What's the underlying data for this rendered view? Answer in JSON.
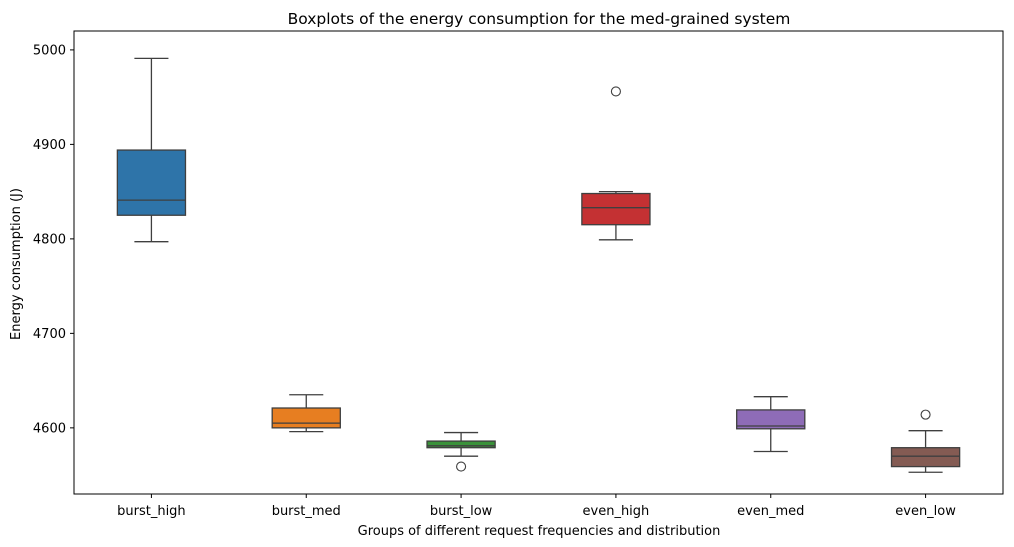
{
  "chart_data": {
    "type": "box",
    "title": "Boxplots of the energy consumption for the med-grained system",
    "xlabel": "Groups of different request frequencies and distribution",
    "ylabel": "Energy consumption (J)",
    "ylim": [
      4530,
      5020
    ],
    "yticks": [
      4600,
      4700,
      4800,
      4900,
      5000
    ],
    "grid": false,
    "categories": [
      "burst_high",
      "burst_med",
      "burst_low",
      "even_high",
      "even_med",
      "even_low"
    ],
    "series": [
      {
        "category": "burst_high",
        "whisker_low": 4797,
        "q1": 4825,
        "median": 4841,
        "q3": 4894,
        "whisker_high": 4991,
        "outliers": [],
        "color": "#2e74a9"
      },
      {
        "category": "burst_med",
        "whisker_low": 4596,
        "q1": 4600,
        "median": 4605,
        "q3": 4621,
        "whisker_high": 4635,
        "outliers": [],
        "color": "#e77e21"
      },
      {
        "category": "burst_low",
        "whisker_low": 4570,
        "q1": 4579,
        "median": 4581,
        "q3": 4586,
        "whisker_high": 4595,
        "outliers": [
          4559
        ],
        "color": "#3a923a"
      },
      {
        "category": "even_high",
        "whisker_low": 4799,
        "q1": 4815,
        "median": 4833,
        "q3": 4848,
        "whisker_high": 4850,
        "outliers": [
          4956
        ],
        "color": "#c43133"
      },
      {
        "category": "even_med",
        "whisker_low": 4575,
        "q1": 4599,
        "median": 4602,
        "q3": 4619,
        "whisker_high": 4633,
        "outliers": [],
        "color": "#8e6cb7"
      },
      {
        "category": "even_low",
        "whisker_low": 4553,
        "q1": 4559,
        "median": 4570,
        "q3": 4579,
        "whisker_high": 4597,
        "outliers": [
          4614
        ],
        "color": "#845b53"
      }
    ]
  }
}
